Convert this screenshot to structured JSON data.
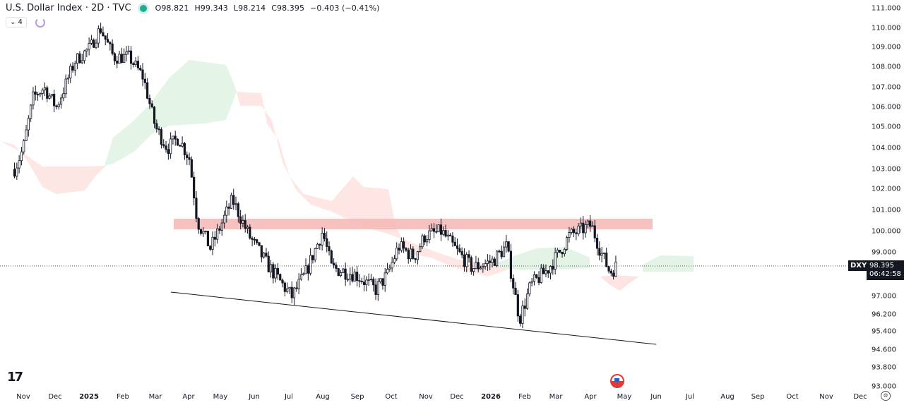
{
  "header": {
    "title": "U.S. Dollar Index · 2D · TVC",
    "open": "O98.821",
    "high": "H99.343",
    "low": "L98.214",
    "close": "C98.395",
    "change": "−0.403 (−0.41%)",
    "collapse_label": "⌄ 4"
  },
  "price_axis": {
    "labels": [
      "111.000",
      "110.000",
      "109.000",
      "108.000",
      "107.000",
      "106.000",
      "105.000",
      "104.000",
      "103.000",
      "102.000",
      "101.000",
      "100.000",
      "99.000",
      "97.000",
      "96.200",
      "95.400",
      "94.600",
      "93.800",
      "93.000"
    ],
    "symbol": "DXY",
    "last_price": "98.395",
    "countdown": "06:42:58"
  },
  "time_axis": {
    "labels": [
      "Nov",
      "Dec",
      "2025",
      "Feb",
      "Mar",
      "Apr",
      "May",
      "Jun",
      "Jul",
      "Aug",
      "Sep",
      "Oct",
      "Nov",
      "Dec",
      "2026",
      "Feb",
      "Mar",
      "Apr",
      "May",
      "Jun",
      "Jul",
      "Aug",
      "Sep",
      "Oct",
      "Nov",
      "Dec"
    ]
  },
  "chart_data": {
    "type": "candlestick",
    "symbol": "DXY",
    "timeframe": "2D",
    "approx_close_path": [
      [
        "2024-10-24",
        103.0
      ],
      [
        "2024-11-01",
        104.0
      ],
      [
        "2024-11-10",
        106.5
      ],
      [
        "2024-11-20",
        107.0
      ],
      [
        "2024-12-01",
        106.0
      ],
      [
        "2024-12-18",
        108.3
      ],
      [
        "2025-01-01",
        109.0
      ],
      [
        "2025-01-10",
        110.0
      ],
      [
        "2025-01-22",
        108.5
      ],
      [
        "2025-02-05",
        108.5
      ],
      [
        "2025-02-18",
        107.5
      ],
      [
        "2025-03-01",
        105.0
      ],
      [
        "2025-03-12",
        104.0
      ],
      [
        "2025-03-22",
        104.5
      ],
      [
        "2025-04-01",
        103.5
      ],
      [
        "2025-04-08",
        100.5
      ],
      [
        "2025-04-20",
        99.2
      ],
      [
        "2025-05-10",
        101.5
      ],
      [
        "2025-05-25",
        99.8
      ],
      [
        "2025-06-10",
        98.5
      ],
      [
        "2025-06-28",
        97.3
      ],
      [
        "2025-07-03",
        97.0
      ],
      [
        "2025-07-15",
        98.0
      ],
      [
        "2025-07-31",
        100.0
      ],
      [
        "2025-08-08",
        98.3
      ],
      [
        "2025-08-30",
        98.0
      ],
      [
        "2025-09-17",
        97.3
      ],
      [
        "2025-09-28",
        98.0
      ],
      [
        "2025-10-08",
        99.3
      ],
      [
        "2025-10-22",
        98.8
      ],
      [
        "2025-11-01",
        99.8
      ],
      [
        "2025-11-16",
        100.0
      ],
      [
        "2025-12-01",
        99.0
      ],
      [
        "2025-12-14",
        98.3
      ],
      [
        "2026-01-01",
        98.6
      ],
      [
        "2026-01-14",
        99.3
      ],
      [
        "2026-01-22",
        97.0
      ],
      [
        "2026-01-26",
        96.0
      ],
      [
        "2026-02-05",
        97.5
      ],
      [
        "2026-02-20",
        98.2
      ],
      [
        "2026-03-03",
        99.0
      ],
      [
        "2026-03-12",
        99.8
      ],
      [
        "2026-04-01",
        100.3
      ],
      [
        "2026-04-10",
        99.0
      ],
      [
        "2026-04-18",
        98.1
      ],
      [
        "2026-04-24",
        98.395
      ]
    ],
    "resistance_zone": [
      100.15,
      100.65
    ],
    "support_trendline": [
      [
        "2025-04-01",
        97.4
      ],
      [
        "2026-06-01",
        94.85
      ]
    ],
    "indicator": "Ichimoku cloud",
    "ylim": [
      93.0,
      111.0
    ]
  }
}
